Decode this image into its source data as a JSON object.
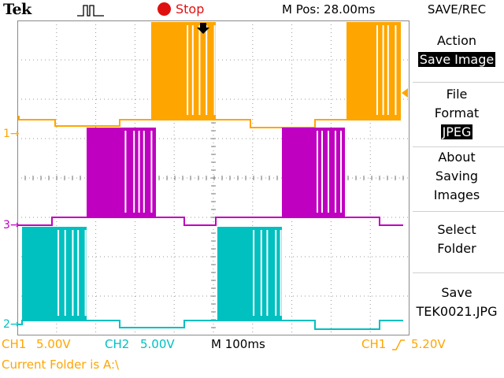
{
  "header": {
    "brand": "Tek",
    "trigger_icon": "trigger-pulse-icon",
    "acquisition_status": "Stop",
    "m_pos": "M Pos: 28.00ms",
    "menu_title": "SAVE/REC"
  },
  "menu": {
    "action": {
      "label": "Action",
      "value": "Save Image"
    },
    "file_format": {
      "label": "File Format",
      "value": "JPEG"
    },
    "about": {
      "label": "About Saving Images"
    },
    "select_folder": {
      "label": "Select Folder"
    },
    "save": {
      "label": "Save",
      "value": "TEK0021.JPG"
    }
  },
  "channels": {
    "ch1": {
      "marker": "1",
      "color": "#ffa500"
    },
    "ch3": {
      "marker": "3",
      "color": "#c000c0"
    },
    "ch2": {
      "marker": "2",
      "color": "#00c0c0"
    }
  },
  "status_bar": {
    "ch1_label": "CH1",
    "ch1_scale": "5.00V",
    "ch2_label": "CH2",
    "ch2_scale": "5.00V",
    "timebase": "M 100ms",
    "trigger_source": "CH1",
    "trigger_level": "5.20V",
    "current_folder": "Current Folder is A:\\"
  }
}
